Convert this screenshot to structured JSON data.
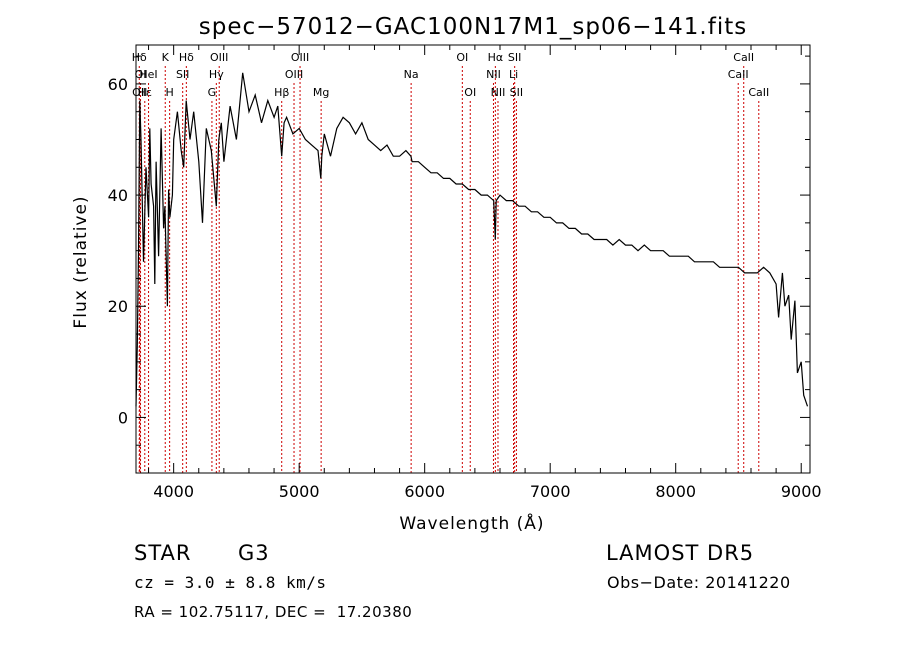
{
  "chart_data": {
    "type": "line",
    "title": "spec−57012−GAC100N17M1_sp06−141.fits",
    "xlabel": "Wavelength (Å)",
    "ylabel": "Flux (relative)",
    "xlim": [
      3700,
      9070
    ],
    "ylim": [
      -10,
      67
    ],
    "xticks": [
      4000,
      5000,
      6000,
      7000,
      8000,
      9000
    ],
    "yticks": [
      0,
      20,
      40,
      60
    ],
    "grid": false,
    "series": [
      {
        "x": [
          3700,
          3710,
          3720,
          3730,
          3740,
          3760,
          3780,
          3800,
          3810,
          3820,
          3840,
          3850,
          3860,
          3880,
          3890,
          3900,
          3920,
          3930,
          3950,
          3960,
          3970,
          3990,
          4000,
          4030,
          4060,
          4080,
          4100,
          4130,
          4160,
          4200,
          4230,
          4260,
          4300,
          4340,
          4360,
          4380,
          4400,
          4450,
          4500,
          4550,
          4600,
          4650,
          4700,
          4750,
          4800,
          4830,
          4861,
          4880,
          4900,
          4950,
          5000,
          5050,
          5100,
          5150,
          5172,
          5180,
          5200,
          5250,
          5300,
          5350,
          5400,
          5450,
          5500,
          5550,
          5600,
          5650,
          5700,
          5750,
          5800,
          5850,
          5890,
          5900,
          5950,
          6000,
          6050,
          6100,
          6150,
          6200,
          6250,
          6300,
          6350,
          6400,
          6450,
          6500,
          6550,
          6563,
          6570,
          6600,
          6650,
          6700,
          6750,
          6800,
          6850,
          6900,
          6950,
          7000,
          7050,
          7100,
          7150,
          7200,
          7250,
          7300,
          7350,
          7400,
          7450,
          7500,
          7550,
          7600,
          7650,
          7700,
          7750,
          7800,
          7850,
          7900,
          7950,
          8000,
          8050,
          8100,
          8150,
          8200,
          8250,
          8300,
          8350,
          8400,
          8450,
          8500,
          8550,
          8600,
          8650,
          8700,
          8750,
          8800,
          8820,
          8850,
          8870,
          8900,
          8920,
          8950,
          8970,
          9000,
          9020,
          9050
        ],
        "y": [
          2,
          13,
          30,
          57,
          50,
          28,
          45,
          36,
          52,
          42,
          38,
          24,
          46,
          29,
          40,
          52,
          34,
          38,
          20,
          41,
          36,
          40,
          50,
          55,
          48,
          45,
          57,
          50,
          55,
          46,
          35,
          52,
          48,
          38,
          50,
          53,
          46,
          56,
          50,
          62,
          55,
          58,
          53,
          57,
          54,
          56,
          47,
          53,
          54,
          51,
          52,
          50,
          49,
          48,
          43,
          47,
          51,
          47,
          52,
          54,
          53,
          51,
          53,
          50,
          49,
          48,
          49,
          47,
          47,
          48,
          47,
          46,
          46,
          45,
          44,
          44,
          43,
          43,
          42,
          42,
          41,
          41,
          40,
          40,
          39,
          32,
          39,
          40,
          39,
          39,
          38,
          38,
          37,
          37,
          36,
          36,
          35,
          35,
          34,
          34,
          33,
          33,
          32,
          32,
          32,
          31,
          32,
          31,
          31,
          30,
          31,
          30,
          30,
          30,
          29,
          29,
          29,
          29,
          28,
          28,
          28,
          28,
          27,
          27,
          27,
          27,
          26,
          26,
          26,
          27,
          26,
          24,
          18,
          26,
          20,
          22,
          14,
          21,
          8,
          10,
          4,
          2
        ]
      }
    ],
    "lines": [
      {
        "label": "Hδ",
        "x": 3726,
        "row": 0
      },
      {
        "label": "OI",
        "x": 3736,
        "row": 1
      },
      {
        "label": "OII",
        "x": 3730,
        "row": 2
      },
      {
        "label": "Hε",
        "x": 3770,
        "row": 2
      },
      {
        "label": "HeI",
        "x": 3800,
        "row": 1
      },
      {
        "label": "K",
        "x": 3933,
        "row": 0
      },
      {
        "label": "H",
        "x": 3968,
        "row": 2
      },
      {
        "label": "Hδ",
        "x": 4101,
        "row": 0
      },
      {
        "label": "SII",
        "x": 4072,
        "row": 1
      },
      {
        "label": "OIII",
        "x": 4363,
        "row": 0
      },
      {
        "label": "Hγ",
        "x": 4340,
        "row": 1
      },
      {
        "label": "G",
        "x": 4305,
        "row": 2
      },
      {
        "label": "OIII",
        "x": 5007,
        "row": 0
      },
      {
        "label": "OIII",
        "x": 4959,
        "row": 1
      },
      {
        "label": "Hβ",
        "x": 4861,
        "row": 2
      },
      {
        "label": "Mg",
        "x": 5175,
        "row": 2
      },
      {
        "label": "Na",
        "x": 5892,
        "row": 1
      },
      {
        "label": "OI",
        "x": 6300,
        "row": 0
      },
      {
        "label": "OI",
        "x": 6363,
        "row": 2
      },
      {
        "label": "Hα",
        "x": 6563,
        "row": 0
      },
      {
        "label": "NII",
        "x": 6548,
        "row": 1
      },
      {
        "label": "NII",
        "x": 6584,
        "row": 2
      },
      {
        "label": "SII",
        "x": 6717,
        "row": 0
      },
      {
        "label": "Li",
        "x": 6708,
        "row": 1
      },
      {
        "label": "SII",
        "x": 6731,
        "row": 2
      },
      {
        "label": "CaII",
        "x": 8542,
        "row": 0
      },
      {
        "label": "CaII",
        "x": 8498,
        "row": 1
      },
      {
        "label": "CaII",
        "x": 8662,
        "row": 2
      }
    ]
  },
  "info": {
    "object_class": "STAR",
    "subclass": "G3",
    "survey": "LAMOST DR5",
    "cz": "cz = 3.0 ± 8.8 km/s",
    "obs_date": "Obs−Date: 20141220",
    "coords": "RA = 102.75117, DEC =  17.20380"
  }
}
